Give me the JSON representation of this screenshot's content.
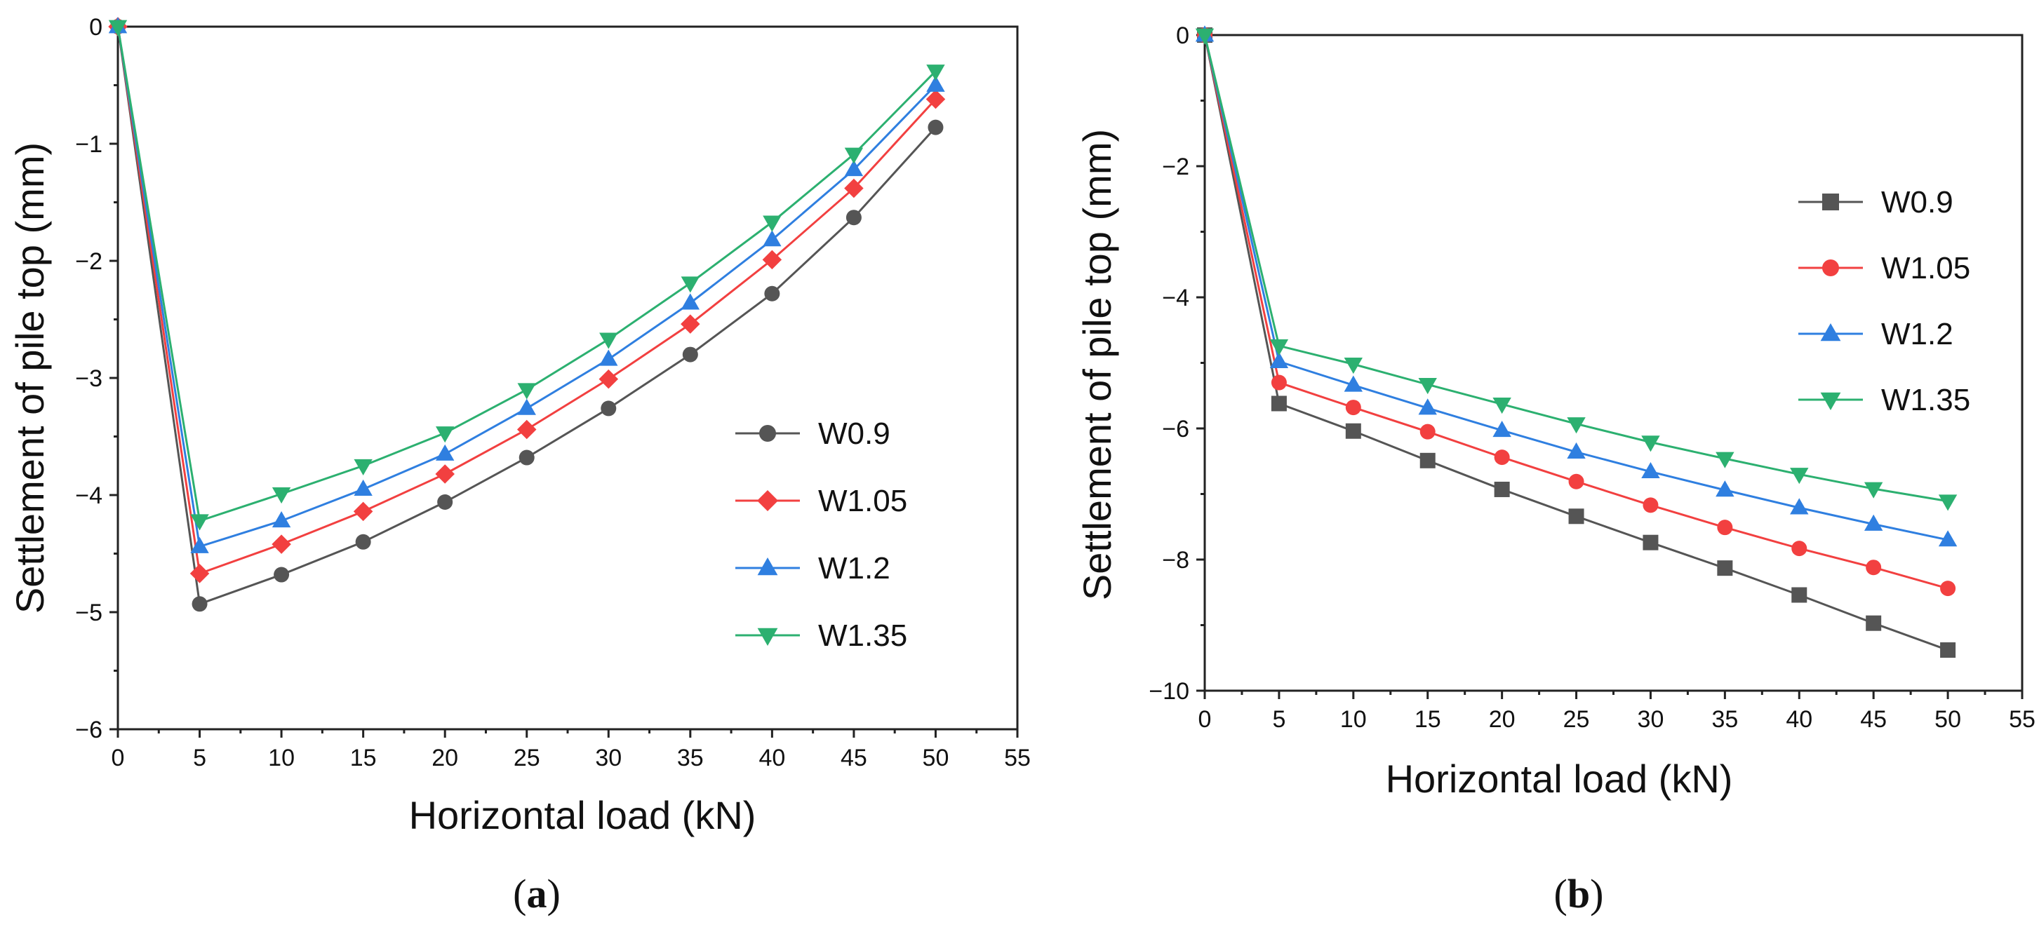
{
  "chart_data": [
    {
      "type": "line",
      "panel_label": "a",
      "xlabel": "Horizontal load (kN)",
      "ylabel": "Settlement of pile top (mm)",
      "xlim": [
        0,
        55
      ],
      "ylim": [
        -6,
        0
      ],
      "xticks": [
        0,
        5,
        10,
        15,
        20,
        25,
        30,
        35,
        40,
        45,
        50,
        55
      ],
      "yticks": [
        0,
        -1,
        -2,
        -3,
        -4,
        -5,
        -6
      ],
      "grid": false,
      "legend_position": "lower-right",
      "x": [
        0,
        5,
        10,
        15,
        20,
        25,
        30,
        35,
        40,
        45,
        50
      ],
      "series": [
        {
          "name": "W0.9",
          "color": "#555555",
          "marker": "circle",
          "values": [
            0,
            -4.93,
            -4.68,
            -4.4,
            -4.06,
            -3.68,
            -3.26,
            -2.8,
            -2.28,
            -1.63,
            -0.86
          ]
        },
        {
          "name": "W1.05",
          "color": "#f24040",
          "marker": "diamond",
          "values": [
            0,
            -4.67,
            -4.42,
            -4.14,
            -3.82,
            -3.44,
            -3.01,
            -2.54,
            -1.99,
            -1.38,
            -0.62
          ]
        },
        {
          "name": "W1.2",
          "color": "#2f7fe0",
          "marker": "triangle-up",
          "values": [
            0,
            -4.44,
            -4.22,
            -3.95,
            -3.65,
            -3.26,
            -2.84,
            -2.36,
            -1.82,
            -1.22,
            -0.5
          ]
        },
        {
          "name": "W1.35",
          "color": "#2cb070",
          "marker": "triangle-down",
          "values": [
            0,
            -4.22,
            -3.99,
            -3.75,
            -3.47,
            -3.1,
            -2.67,
            -2.19,
            -1.67,
            -1.09,
            -0.38
          ]
        }
      ]
    },
    {
      "type": "line",
      "panel_label": "b",
      "xlabel": "Horizontal load (kN)",
      "ylabel": "Settlement of pile top (mm)",
      "xlim": [
        0,
        55
      ],
      "ylim": [
        -10,
        0
      ],
      "xticks": [
        0,
        5,
        10,
        15,
        20,
        25,
        30,
        35,
        40,
        45,
        50,
        55
      ],
      "yticks": [
        0,
        -2,
        -4,
        -6,
        -8,
        -10
      ],
      "grid": false,
      "legend_position": "upper-right",
      "x": [
        0,
        5,
        10,
        15,
        20,
        25,
        30,
        35,
        40,
        45,
        50
      ],
      "series": [
        {
          "name": "W0.9",
          "color": "#555555",
          "marker": "square",
          "values": [
            0,
            -5.62,
            -6.04,
            -6.49,
            -6.93,
            -7.34,
            -7.74,
            -8.13,
            -8.54,
            -8.97,
            -9.38
          ]
        },
        {
          "name": "W1.05",
          "color": "#f24040",
          "marker": "circle",
          "values": [
            0,
            -5.3,
            -5.68,
            -6.05,
            -6.44,
            -6.81,
            -7.17,
            -7.51,
            -7.83,
            -8.12,
            -8.44
          ]
        },
        {
          "name": "W1.2",
          "color": "#2f7fe0",
          "marker": "triangle-up",
          "values": [
            0,
            -4.98,
            -5.34,
            -5.69,
            -6.03,
            -6.36,
            -6.66,
            -6.94,
            -7.21,
            -7.46,
            -7.7
          ]
        },
        {
          "name": "W1.35",
          "color": "#2cb070",
          "marker": "triangle-down",
          "values": [
            0,
            -4.74,
            -5.02,
            -5.33,
            -5.63,
            -5.93,
            -6.21,
            -6.46,
            -6.7,
            -6.92,
            -7.11
          ]
        }
      ]
    }
  ]
}
